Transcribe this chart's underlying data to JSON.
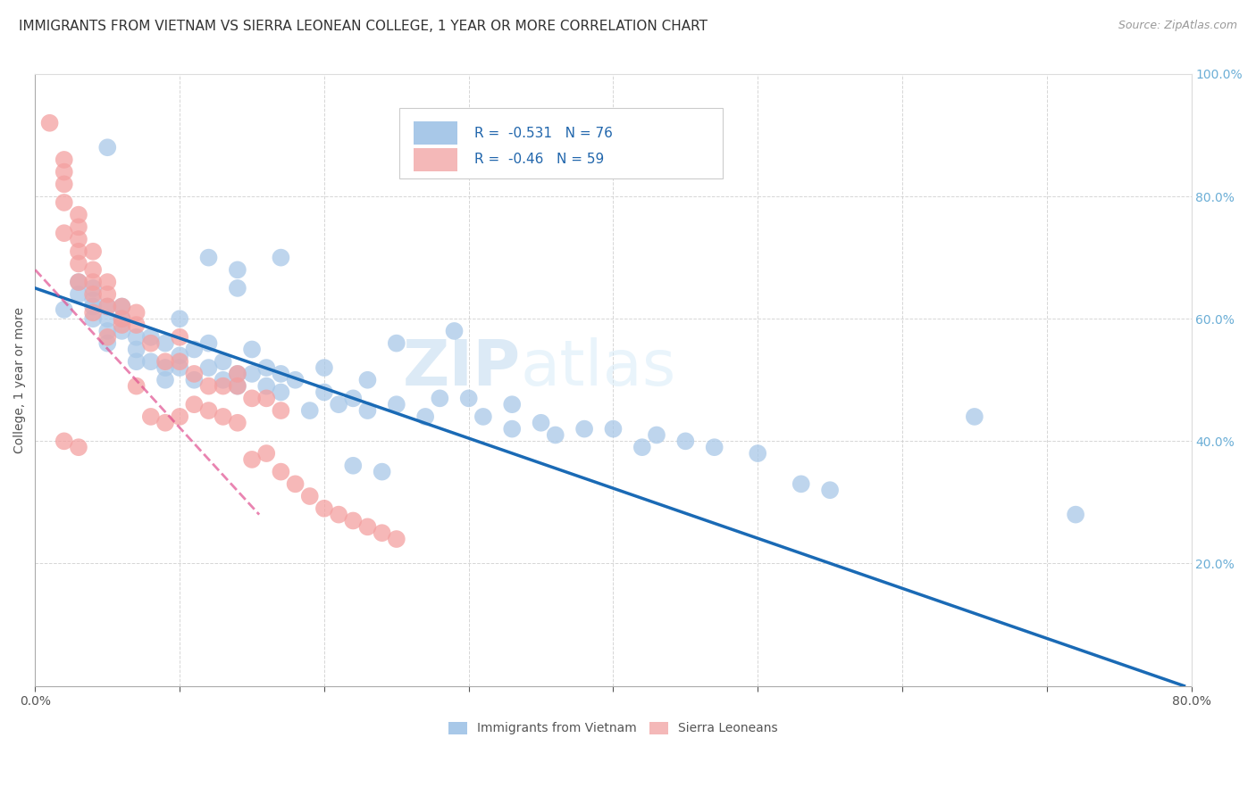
{
  "title": "IMMIGRANTS FROM VIETNAM VS SIERRA LEONEAN COLLEGE, 1 YEAR OR MORE CORRELATION CHART",
  "source": "Source: ZipAtlas.com",
  "ylabel": "College, 1 year or more",
  "xlim": [
    0.0,
    0.8
  ],
  "ylim": [
    0.0,
    1.0
  ],
  "xticks": [
    0.0,
    0.1,
    0.2,
    0.3,
    0.4,
    0.5,
    0.6,
    0.7,
    0.8
  ],
  "yticks": [
    0.0,
    0.2,
    0.4,
    0.6,
    0.8,
    1.0
  ],
  "right_ytick_labels": [
    "",
    "20.0%",
    "40.0%",
    "60.0%",
    "80.0%",
    "100.0%"
  ],
  "blue_color": "#a8c8e8",
  "pink_color": "#f4a0a0",
  "blue_line_color": "#1a6ab5",
  "pink_line_color": "#e05090",
  "legend_blue_color": "#a8c8e8",
  "legend_pink_color": "#f4b8b8",
  "R_blue": -0.531,
  "N_blue": 76,
  "R_pink": -0.46,
  "N_pink": 59,
  "watermark_zip": "ZIP",
  "watermark_atlas": "atlas",
  "blue_scatter_x": [
    0.02,
    0.03,
    0.03,
    0.04,
    0.04,
    0.04,
    0.04,
    0.05,
    0.05,
    0.05,
    0.05,
    0.06,
    0.06,
    0.06,
    0.07,
    0.07,
    0.07,
    0.08,
    0.08,
    0.09,
    0.09,
    0.09,
    0.1,
    0.1,
    0.1,
    0.11,
    0.11,
    0.12,
    0.12,
    0.13,
    0.13,
    0.14,
    0.14,
    0.15,
    0.15,
    0.16,
    0.16,
    0.17,
    0.17,
    0.18,
    0.19,
    0.2,
    0.2,
    0.21,
    0.22,
    0.22,
    0.23,
    0.23,
    0.24,
    0.25,
    0.25,
    0.27,
    0.28,
    0.29,
    0.3,
    0.31,
    0.33,
    0.33,
    0.35,
    0.36,
    0.38,
    0.4,
    0.42,
    0.43,
    0.45,
    0.47,
    0.5,
    0.53,
    0.55,
    0.65,
    0.72,
    0.05,
    0.12,
    0.14,
    0.14,
    0.17
  ],
  "blue_scatter_y": [
    0.615,
    0.64,
    0.66,
    0.6,
    0.62,
    0.63,
    0.65,
    0.56,
    0.58,
    0.6,
    0.62,
    0.58,
    0.6,
    0.62,
    0.53,
    0.55,
    0.57,
    0.53,
    0.57,
    0.5,
    0.52,
    0.56,
    0.52,
    0.54,
    0.6,
    0.5,
    0.55,
    0.52,
    0.56,
    0.5,
    0.53,
    0.49,
    0.51,
    0.51,
    0.55,
    0.49,
    0.52,
    0.48,
    0.51,
    0.5,
    0.45,
    0.48,
    0.52,
    0.46,
    0.47,
    0.36,
    0.45,
    0.5,
    0.35,
    0.46,
    0.56,
    0.44,
    0.47,
    0.58,
    0.47,
    0.44,
    0.42,
    0.46,
    0.43,
    0.41,
    0.42,
    0.42,
    0.39,
    0.41,
    0.4,
    0.39,
    0.38,
    0.33,
    0.32,
    0.44,
    0.28,
    0.88,
    0.7,
    0.68,
    0.65,
    0.7
  ],
  "pink_scatter_x": [
    0.01,
    0.02,
    0.02,
    0.02,
    0.02,
    0.02,
    0.03,
    0.03,
    0.03,
    0.03,
    0.03,
    0.03,
    0.04,
    0.04,
    0.04,
    0.04,
    0.04,
    0.05,
    0.05,
    0.05,
    0.06,
    0.06,
    0.07,
    0.07,
    0.08,
    0.09,
    0.1,
    0.1,
    0.11,
    0.12,
    0.13,
    0.14,
    0.14,
    0.15,
    0.16,
    0.17,
    0.05,
    0.07,
    0.08,
    0.09,
    0.1,
    0.11,
    0.12,
    0.13,
    0.14,
    0.15,
    0.16,
    0.17,
    0.18,
    0.19,
    0.2,
    0.21,
    0.22,
    0.23,
    0.24,
    0.25,
    0.02,
    0.03,
    0.06
  ],
  "pink_scatter_y": [
    0.92,
    0.84,
    0.86,
    0.82,
    0.79,
    0.74,
    0.73,
    0.75,
    0.77,
    0.71,
    0.69,
    0.66,
    0.66,
    0.68,
    0.71,
    0.64,
    0.61,
    0.62,
    0.64,
    0.66,
    0.59,
    0.62,
    0.59,
    0.61,
    0.56,
    0.53,
    0.53,
    0.57,
    0.51,
    0.49,
    0.49,
    0.49,
    0.51,
    0.47,
    0.47,
    0.45,
    0.57,
    0.49,
    0.44,
    0.43,
    0.44,
    0.46,
    0.45,
    0.44,
    0.43,
    0.37,
    0.38,
    0.35,
    0.33,
    0.31,
    0.29,
    0.28,
    0.27,
    0.26,
    0.25,
    0.24,
    0.4,
    0.39,
    0.6
  ],
  "blue_line_x": [
    0.0,
    0.795
  ],
  "blue_line_y": [
    0.65,
    0.0
  ],
  "pink_line_x": [
    0.0,
    0.155
  ],
  "pink_line_y": [
    0.68,
    0.28
  ],
  "title_fontsize": 11,
  "axis_label_fontsize": 10,
  "tick_fontsize": 10,
  "legend_fontsize": 11,
  "watermark_fontsize_zip": 52,
  "watermark_fontsize_atlas": 52,
  "background_color": "#ffffff",
  "grid_color": "#cccccc",
  "axis_color": "#aaaaaa",
  "right_axis_color": "#6baed6"
}
